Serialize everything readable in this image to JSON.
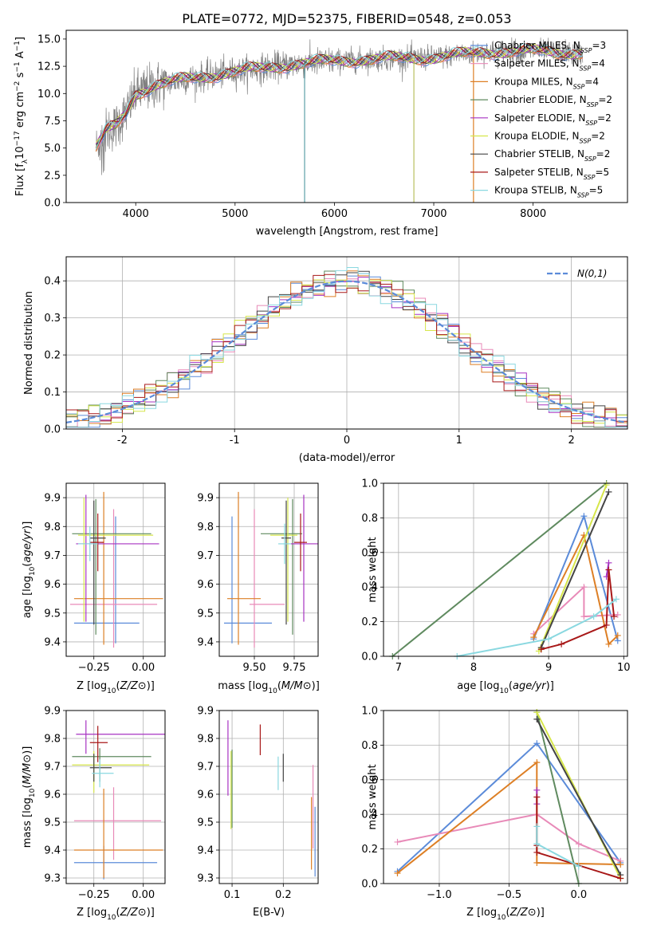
{
  "figure": {
    "title": "PLATE=0772, MJD=52375, FIBERID=0548, z=0.053"
  },
  "model_colors": {
    "Chabrier MILES": "#5b8bd9",
    "Salpeter MILES": "#e88ab8",
    "Kroupa MILES": "#dd7f25",
    "Chabrier ELODIE": "#5f8a5f",
    "Salpeter ELODIE": "#a733c2",
    "Kroupa ELODIE": "#d6e64a",
    "Chabrier STELIB": "#444444",
    "Salpeter STELIB": "#a81818",
    "Kroupa STELIB": "#8ad8e0"
  },
  "chart_data": [
    {
      "id": "spectrum",
      "type": "line",
      "xlabel": "wavelength [Angstrom, rest frame]",
      "ylabel": "Flux [f_λ 10^-17 erg cm^-2 s^-1 A^-1]",
      "xlim": [
        3300,
        8950
      ],
      "ylim": [
        0,
        15.8
      ],
      "xticks": [
        4000,
        5000,
        6000,
        7000,
        8000
      ],
      "yticks": [
        0.0,
        2.5,
        5.0,
        7.5,
        10.0,
        12.5,
        15.0
      ],
      "grid": false,
      "legend_position": "right",
      "legend": [
        {
          "label": "Chabrier MILES, N_SSP=3",
          "color": "#5b8bd9"
        },
        {
          "label": "Salpeter MILES, N_SSP=4",
          "color": "#e88ab8"
        },
        {
          "label": "Kroupa MILES, N_SSP=4",
          "color": "#dd7f25"
        },
        {
          "label": "Chabrier ELODIE, N_SSP=2",
          "color": "#5f8a5f"
        },
        {
          "label": "Salpeter ELODIE, N_SSP=2",
          "color": "#a733c2"
        },
        {
          "label": "Kroupa ELODIE, N_SSP=2",
          "color": "#d6e64a"
        },
        {
          "label": "Chabrier STELIB, N_SSP=2",
          "color": "#444444"
        },
        {
          "label": "Salpeter STELIB, N_SSP=5",
          "color": "#a81818"
        },
        {
          "label": "Kroupa STELIB, N_SSP=5",
          "color": "#8ad8e0"
        }
      ],
      "continuum": [
        [
          3600,
          5.0
        ],
        [
          3700,
          6.5
        ],
        [
          3800,
          7.0
        ],
        [
          3900,
          8.2
        ],
        [
          4000,
          10.0
        ],
        [
          4200,
          10.8
        ],
        [
          4500,
          11.3
        ],
        [
          5000,
          12.0
        ],
        [
          5500,
          12.6
        ],
        [
          6000,
          13.0
        ],
        [
          6500,
          13.2
        ],
        [
          7000,
          13.3
        ],
        [
          7500,
          13.8
        ],
        [
          8000,
          13.9
        ],
        [
          8500,
          13.7
        ]
      ],
      "absorption_spikes": [
        [
          5700,
          0.0
        ],
        [
          6800,
          0.0
        ],
        [
          7400,
          0.0
        ]
      ]
    },
    {
      "id": "residuals",
      "type": "histogram",
      "xlabel": "(data-model)/error",
      "ylabel": "Normed distribution",
      "xlim": [
        -2.5,
        2.5
      ],
      "ylim": [
        0,
        0.465
      ],
      "xticks": [
        -2,
        -1,
        0,
        1,
        2
      ],
      "yticks": [
        0.0,
        0.1,
        0.2,
        0.3,
        0.4
      ],
      "grid": true,
      "legend_position": "top-right",
      "reference_label": "N(0,1)",
      "reference_color": "#5b8bd9",
      "bin_width": 0.1
    },
    {
      "id": "age_vs_Z",
      "type": "errorbar",
      "xlabel": "Z [log10(Z/Z⊙)]",
      "ylabel": "age [log10(age/yr)]",
      "xlim": [
        -0.39,
        0.11
      ],
      "ylim": [
        9.35,
        9.95
      ],
      "xticks": [
        -0.25,
        0.0
      ],
      "xticklabels": [
        "−0.25",
        "0.00"
      ],
      "yticks": [
        9.4,
        9.5,
        9.6,
        9.7,
        9.8,
        9.9
      ],
      "grid": true,
      "points": [
        {
          "model": "Chabrier MILES",
          "x": -0.14,
          "xerr": [
            0.21,
            0.12
          ],
          "y": 9.465,
          "yerr": [
            0.07,
            0.37
          ]
        },
        {
          "model": "Salpeter MILES",
          "x": -0.15,
          "xerr": [
            0.22,
            0.22
          ],
          "y": 9.53,
          "yerr": [
            0.15,
            0.33
          ]
        },
        {
          "model": "Kroupa MILES",
          "x": -0.2,
          "xerr": [
            0.15,
            0.3
          ],
          "y": 9.55,
          "yerr": [
            0.16,
            0.37
          ]
        },
        {
          "model": "Chabrier ELODIE",
          "x": -0.24,
          "xerr": [
            0.12,
            0.28
          ],
          "y": 9.775,
          "yerr": [
            0.35,
            0.12
          ]
        },
        {
          "model": "Salpeter ELODIE",
          "x": -0.29,
          "xerr": [
            0.05,
            0.37
          ],
          "y": 9.74,
          "yerr": [
            0.27,
            0.17
          ]
        },
        {
          "model": "Kroupa ELODIE",
          "x": -0.3,
          "xerr": [
            0.03,
            0.35
          ],
          "y": 9.77,
          "yerr": [
            0.3,
            0.13
          ]
        },
        {
          "model": "Chabrier STELIB",
          "x": -0.25,
          "xerr": [
            0.02,
            0.06
          ],
          "y": 9.76,
          "yerr": [
            0.3,
            0.13
          ]
        },
        {
          "model": "Salpeter STELIB",
          "x": -0.23,
          "xerr": [
            0.04,
            0.03
          ],
          "y": 9.745,
          "yerr": [
            0.1,
            0.1
          ]
        },
        {
          "model": "Kroupa STELIB",
          "x": -0.27,
          "xerr": [
            0.06,
            0.04
          ],
          "y": 9.74,
          "yerr": [
            0.06,
            0.06
          ]
        }
      ]
    },
    {
      "id": "age_vs_mass",
      "type": "errorbar",
      "xlabel": "mass [log10(M/M⊙)]",
      "ylabel": "",
      "xlim": [
        9.28,
        9.9
      ],
      "ylim": [
        9.35,
        9.95
      ],
      "xticks": [
        9.5,
        9.75
      ],
      "xticklabels": [
        "9.50",
        "9.75"
      ],
      "yticks": [
        9.4,
        9.5,
        9.6,
        9.7,
        9.8,
        9.9
      ],
      "grid": true,
      "points": [
        {
          "model": "Chabrier MILES",
          "x": 9.36,
          "xerr": [
            0.05,
            0.25
          ],
          "y": 9.465,
          "yerr": [
            0.07,
            0.37
          ]
        },
        {
          "model": "Salpeter MILES",
          "x": 9.5,
          "xerr": [
            0.03,
            0.19
          ],
          "y": 9.53,
          "yerr": [
            0.15,
            0.33
          ]
        },
        {
          "model": "Kroupa MILES",
          "x": 9.4,
          "xerr": [
            0.07,
            0.14
          ],
          "y": 9.55,
          "yerr": [
            0.16,
            0.37
          ]
        },
        {
          "model": "Chabrier ELODIE",
          "x": 9.74,
          "xerr": [
            0.2,
            0.06
          ],
          "y": 9.775,
          "yerr": [
            0.35,
            0.12
          ]
        },
        {
          "model": "Salpeter ELODIE",
          "x": 9.81,
          "xerr": [
            0.08,
            0.1
          ],
          "y": 9.74,
          "yerr": [
            0.27,
            0.17
          ]
        },
        {
          "model": "Kroupa ELODIE",
          "x": 9.71,
          "xerr": [
            0.11,
            0.06
          ],
          "y": 9.77,
          "yerr": [
            0.3,
            0.13
          ]
        },
        {
          "model": "Chabrier STELIB",
          "x": 9.7,
          "xerr": [
            0.03,
            0.03
          ],
          "y": 9.76,
          "yerr": [
            0.3,
            0.13
          ]
        },
        {
          "model": "Salpeter STELIB",
          "x": 9.79,
          "xerr": [
            0.04,
            0.04
          ],
          "y": 9.745,
          "yerr": [
            0.1,
            0.1
          ]
        },
        {
          "model": "Kroupa STELIB",
          "x": 9.69,
          "xerr": [
            0.04,
            0.04
          ],
          "y": 9.74,
          "yerr": [
            0.07,
            0.07
          ]
        }
      ]
    },
    {
      "id": "mass_weight_vs_age",
      "type": "line",
      "xlabel": "age [log10(age/yr)]",
      "ylabel": "mass weight",
      "xlim": [
        6.8,
        10.05
      ],
      "ylim": [
        0,
        1.0
      ],
      "xticks": [
        7,
        8,
        9,
        10
      ],
      "yticks": [
        0.0,
        0.2,
        0.4,
        0.6,
        0.8,
        1.0
      ],
      "grid": true,
      "series": [
        {
          "model": "Chabrier MILES",
          "x": [
            8.8,
            9.47,
            9.92
          ],
          "y": [
            0.1,
            0.81,
            0.09
          ]
        },
        {
          "model": "Salpeter MILES",
          "x": [
            8.8,
            9.47,
            9.47,
            9.92
          ],
          "y": [
            0.13,
            0.4,
            0.23,
            0.24
          ]
        },
        {
          "model": "Kroupa MILES",
          "x": [
            8.8,
            9.47,
            9.8,
            9.92
          ],
          "y": [
            0.11,
            0.7,
            0.07,
            0.12
          ]
        },
        {
          "model": "Chabrier ELODIE",
          "x": [
            6.92,
            9.77
          ],
          "y": [
            0.0,
            1.0
          ]
        },
        {
          "model": "Salpeter ELODIE",
          "x": [
            9.77,
            9.8
          ],
          "y": [
            0.46,
            0.54
          ]
        },
        {
          "model": "Kroupa ELODIE",
          "x": [
            8.87,
            9.77
          ],
          "y": [
            0.03,
            0.99
          ]
        },
        {
          "model": "Chabrier STELIB",
          "x": [
            8.9,
            9.8
          ],
          "y": [
            0.05,
            0.95
          ]
        },
        {
          "model": "Salpeter STELIB",
          "x": [
            8.9,
            9.17,
            9.77,
            9.8,
            9.87
          ],
          "y": [
            0.04,
            0.07,
            0.18,
            0.5,
            0.23
          ]
        },
        {
          "model": "Kroupa STELIB",
          "x": [
            7.78,
            9.0,
            9.6,
            9.9
          ],
          "y": [
            0.0,
            0.1,
            0.23,
            0.33
          ]
        }
      ]
    },
    {
      "id": "mass_vs_Z",
      "type": "errorbar",
      "xlabel": "Z [log10(Z/Z⊙)]",
      "ylabel": "mass [log10(M/M⊙)]",
      "xlim": [
        -0.39,
        0.11
      ],
      "ylim": [
        9.28,
        9.9
      ],
      "xticks": [
        -0.25,
        0.0
      ],
      "xticklabels": [
        "−0.25",
        "0.00"
      ],
      "yticks": [
        9.3,
        9.4,
        9.5,
        9.6,
        9.7,
        9.8,
        9.9
      ],
      "grid": true,
      "points": [
        {
          "model": "Chabrier MILES",
          "x": -0.2,
          "xerr": [
            0.15,
            0.27
          ],
          "y": 9.355,
          "yerr": [
            0.06,
            0.06
          ]
        },
        {
          "model": "Salpeter MILES",
          "x": -0.15,
          "xerr": [
            0.2,
            0.24
          ],
          "y": 9.505,
          "yerr": [
            0.14,
            0.12
          ]
        },
        {
          "model": "Kroupa MILES",
          "x": -0.2,
          "xerr": [
            0.15,
            0.3
          ],
          "y": 9.4,
          "yerr": [
            0.1,
            0.22
          ]
        },
        {
          "model": "Chabrier ELODIE",
          "x": -0.22,
          "xerr": [
            0.14,
            0.26
          ],
          "y": 9.735,
          "yerr": [
            0.09,
            0.03
          ]
        },
        {
          "model": "Salpeter ELODIE",
          "x": -0.29,
          "xerr": [
            0.05,
            0.4
          ],
          "y": 9.815,
          "yerr": [
            0.07,
            0.05
          ]
        },
        {
          "model": "Kroupa ELODIE",
          "x": -0.25,
          "xerr": [
            0.11,
            0.28
          ],
          "y": 9.705,
          "yerr": [
            0.1,
            0.05
          ]
        },
        {
          "model": "Chabrier STELIB",
          "x": -0.25,
          "xerr": [
            0.02,
            0.09
          ],
          "y": 9.695,
          "yerr": [
            0.05,
            0.05
          ]
        },
        {
          "model": "Salpeter STELIB",
          "x": -0.23,
          "xerr": [
            0.04,
            0.05
          ],
          "y": 9.785,
          "yerr": [
            0.07,
            0.06
          ]
        },
        {
          "model": "Kroupa STELIB",
          "x": -0.22,
          "xerr": [
            0.04,
            0.07
          ],
          "y": 9.675,
          "yerr": [
            0.05,
            0.05
          ]
        }
      ]
    },
    {
      "id": "mass_vs_ebv",
      "type": "errorbar",
      "xlabel": "E(B-V)",
      "ylabel": "",
      "xlim": [
        0.075,
        0.268
      ],
      "ylim": [
        9.28,
        9.9
      ],
      "xticks": [
        0.1,
        0.2
      ],
      "xticklabels": [
        "0.1",
        "0.2"
      ],
      "yticks": [
        9.3,
        9.4,
        9.5,
        9.6,
        9.7,
        9.8,
        9.9
      ],
      "grid": true,
      "points": [
        {
          "model": "Chabrier MILES",
          "x": 0.262,
          "y": 9.355,
          "yerr": [
            0.05,
            0.2
          ]
        },
        {
          "model": "Salpeter MILES",
          "x": 0.258,
          "y": 9.505,
          "yerr": [
            0.1,
            0.2
          ]
        },
        {
          "model": "Kroupa MILES",
          "x": 0.255,
          "y": 9.4,
          "yerr": [
            0.07,
            0.19
          ]
        },
        {
          "model": "Chabrier ELODIE",
          "x": 0.1,
          "y": 9.73,
          "yerr": [
            0.25,
            0.03
          ]
        },
        {
          "model": "Salpeter ELODIE",
          "x": 0.092,
          "y": 9.815,
          "yerr": [
            0.22,
            0.05
          ]
        },
        {
          "model": "Kroupa ELODIE",
          "x": 0.098,
          "y": 9.705,
          "yerr": [
            0.23,
            0.05
          ]
        },
        {
          "model": "Chabrier STELIB",
          "x": 0.2,
          "y": 9.695,
          "yerr": [
            0.05,
            0.05
          ]
        },
        {
          "model": "Salpeter STELIB",
          "x": 0.155,
          "y": 9.79,
          "yerr": [
            0.05,
            0.06
          ]
        },
        {
          "model": "Kroupa STELIB",
          "x": 0.19,
          "y": 9.675,
          "yerr": [
            0.06,
            0.06
          ]
        }
      ]
    },
    {
      "id": "mass_weight_vs_Z",
      "type": "line",
      "xlabel": "Z [log10(Z/Z⊙)]",
      "ylabel": "mass weight",
      "xlim": [
        -1.4,
        0.35
      ],
      "ylim": [
        0,
        1.0
      ],
      "xticks": [
        -1.0,
        -0.5,
        0.0
      ],
      "xticklabels": [
        "−1.0",
        "−0.5",
        "0.0"
      ],
      "yticks": [
        0.0,
        0.2,
        0.4,
        0.6,
        0.8,
        1.0
      ],
      "grid": true,
      "series": [
        {
          "model": "Chabrier MILES",
          "x": [
            -1.3,
            -0.3,
            0.3
          ],
          "y": [
            0.07,
            0.81,
            0.12
          ]
        },
        {
          "model": "Salpeter MILES",
          "x": [
            -1.3,
            -0.3,
            0.0,
            0.3
          ],
          "y": [
            0.24,
            0.4,
            0.23,
            0.13
          ]
        },
        {
          "model": "Kroupa MILES",
          "x": [
            -1.3,
            -0.3,
            -0.3,
            0.3
          ],
          "y": [
            0.06,
            0.7,
            0.12,
            0.11
          ]
        },
        {
          "model": "Chabrier ELODIE",
          "x": [
            -0.3,
            0.0
          ],
          "y": [
            0.99,
            0.0
          ]
        },
        {
          "model": "Salpeter ELODIE",
          "x": [
            -0.3,
            -0.3
          ],
          "y": [
            0.46,
            0.54
          ]
        },
        {
          "model": "Kroupa ELODIE",
          "x": [
            -0.3,
            0.3
          ],
          "y": [
            0.99,
            0.03
          ]
        },
        {
          "model": "Chabrier STELIB",
          "x": [
            -0.3,
            0.3
          ],
          "y": [
            0.95,
            0.05
          ]
        },
        {
          "model": "Salpeter STELIB",
          "x": [
            -0.3,
            -0.3,
            -0.3,
            0.3
          ],
          "y": [
            0.5,
            0.22,
            0.18,
            0.03
          ]
        },
        {
          "model": "Kroupa STELIB",
          "x": [
            -0.3,
            -0.3,
            0.0
          ],
          "y": [
            0.33,
            0.23,
            0.1
          ]
        }
      ]
    }
  ]
}
